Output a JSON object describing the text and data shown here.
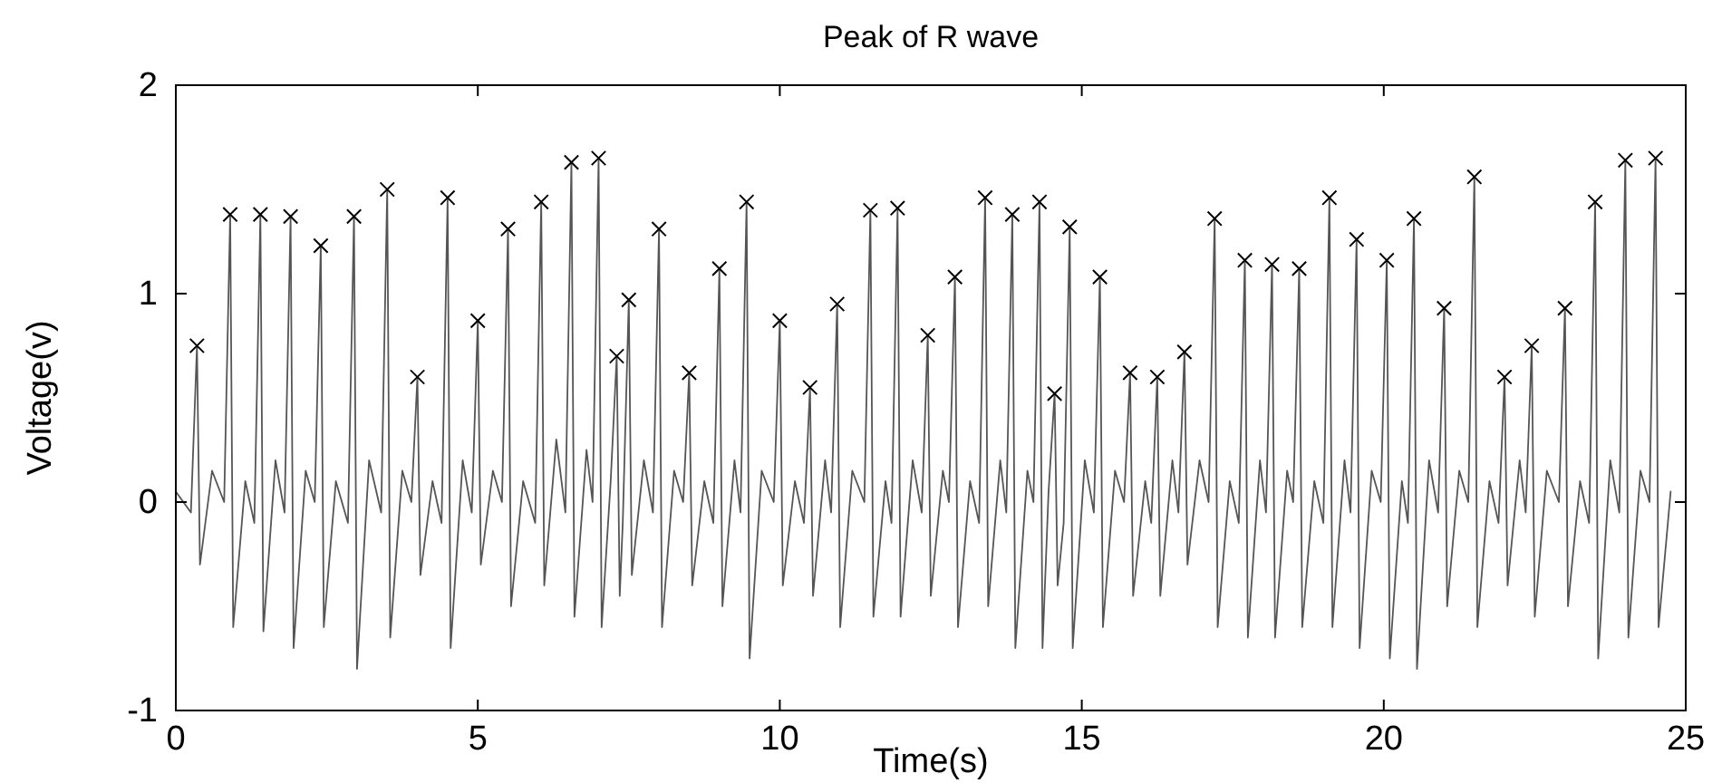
{
  "chart_data": {
    "type": "line",
    "title": "Peak of R wave",
    "xlabel": "Time(s)",
    "ylabel": "Voltage(v)",
    "xlim": [
      0,
      25
    ],
    "xticks": [
      0,
      5,
      10,
      15,
      20,
      25
    ],
    "ylim": [
      -1,
      2
    ],
    "yticks": [
      -1,
      0,
      1,
      2
    ],
    "grid": false,
    "series": [
      {
        "type": "line",
        "color": "#555555",
        "line_style": "solid",
        "x": [
          0,
          0.25,
          0.35,
          0.4,
          0.6,
          0.8,
          0.9,
          0.95,
          1.15,
          1.3,
          1.4,
          1.45,
          1.65,
          1.8,
          1.9,
          1.95,
          2.15,
          2.3,
          2.4,
          2.45,
          2.65,
          2.85,
          2.95,
          3.0,
          3.2,
          3.4,
          3.5,
          3.55,
          3.75,
          3.9,
          4.0,
          4.05,
          4.25,
          4.4,
          4.5,
          4.55,
          4.75,
          4.9,
          5.0,
          5.05,
          5.25,
          5.4,
          5.5,
          5.55,
          5.75,
          5.95,
          6.05,
          6.1,
          6.3,
          6.45,
          6.55,
          6.6,
          6.8,
          6.9,
          7.0,
          7.05,
          7.2,
          7.3,
          7.35,
          7.4,
          7.5,
          7.55,
          7.75,
          7.9,
          8.0,
          8.05,
          8.25,
          8.4,
          8.5,
          8.55,
          8.75,
          8.9,
          9.0,
          9.05,
          9.25,
          9.35,
          9.45,
          9.5,
          9.7,
          9.9,
          10.0,
          10.05,
          10.25,
          10.4,
          10.5,
          10.55,
          10.75,
          10.85,
          10.95,
          11.0,
          11.2,
          11.4,
          11.5,
          11.55,
          11.75,
          11.85,
          11.95,
          12.0,
          12.2,
          12.35,
          12.45,
          12.5,
          12.7,
          12.8,
          12.9,
          12.95,
          13.15,
          13.3,
          13.4,
          13.45,
          13.65,
          13.75,
          13.85,
          13.9,
          14.1,
          14.2,
          14.3,
          14.35,
          14.45,
          14.55,
          14.6,
          14.7,
          14.8,
          14.85,
          15.05,
          15.2,
          15.3,
          15.35,
          15.55,
          15.7,
          15.8,
          15.85,
          16.05,
          16.15,
          16.25,
          16.3,
          16.5,
          16.6,
          16.7,
          16.75,
          16.95,
          17.1,
          17.2,
          17.25,
          17.45,
          17.6,
          17.7,
          17.75,
          17.95,
          18.05,
          18.15,
          18.2,
          18.4,
          18.5,
          18.6,
          18.65,
          18.85,
          19.0,
          19.1,
          19.15,
          19.35,
          19.45,
          19.55,
          19.6,
          19.8,
          19.95,
          20.05,
          20.1,
          20.3,
          20.4,
          20.5,
          20.55,
          20.75,
          20.9,
          21.0,
          21.05,
          21.25,
          21.4,
          21.5,
          21.55,
          21.75,
          21.9,
          22.0,
          22.05,
          22.25,
          22.35,
          22.45,
          22.5,
          22.7,
          22.9,
          23.0,
          23.05,
          23.25,
          23.4,
          23.5,
          23.55,
          23.75,
          23.9,
          24.0,
          24.05,
          24.25,
          24.4,
          24.5,
          24.55,
          24.75
        ],
        "values": [
          0.05,
          -0.05,
          0.75,
          -0.3,
          0.15,
          0,
          1.38,
          -0.6,
          0.1,
          -0.1,
          1.38,
          -0.62,
          0.2,
          -0.05,
          1.37,
          -0.7,
          0.15,
          0,
          1.23,
          -0.6,
          0.1,
          -0.1,
          1.37,
          -0.8,
          0.2,
          -0.05,
          1.5,
          -0.65,
          0.15,
          0,
          0.6,
          -0.35,
          0.1,
          -0.1,
          1.46,
          -0.7,
          0.2,
          -0.05,
          0.87,
          -0.3,
          0.15,
          0,
          1.31,
          -0.5,
          0.1,
          -0.1,
          1.44,
          -0.4,
          0.3,
          -0.05,
          1.63,
          -0.55,
          0.25,
          0,
          1.65,
          -0.6,
          0.1,
          0.7,
          -0.45,
          -0.1,
          0.97,
          -0.35,
          0.2,
          -0.05,
          1.31,
          -0.6,
          0.15,
          0,
          0.62,
          -0.4,
          0.1,
          -0.1,
          1.12,
          -0.5,
          0.2,
          -0.05,
          1.44,
          -0.75,
          0.15,
          0,
          0.87,
          -0.4,
          0.1,
          -0.1,
          0.55,
          -0.45,
          0.2,
          -0.05,
          0.95,
          -0.6,
          0.15,
          0,
          1.4,
          -0.55,
          0.1,
          -0.1,
          1.41,
          -0.55,
          0.2,
          -0.05,
          0.8,
          -0.45,
          0.15,
          0,
          1.08,
          -0.6,
          0.1,
          -0.1,
          1.46,
          -0.5,
          0.2,
          -0.05,
          1.38,
          -0.7,
          0.15,
          0,
          1.44,
          -0.7,
          0.05,
          0.52,
          -0.4,
          -0.1,
          1.32,
          -0.7,
          0.2,
          -0.05,
          1.08,
          -0.6,
          0.15,
          0,
          0.62,
          -0.45,
          0.1,
          -0.1,
          0.6,
          -0.45,
          0.2,
          -0.05,
          0.72,
          -0.3,
          0.2,
          0,
          1.36,
          -0.6,
          0.1,
          -0.1,
          1.16,
          -0.65,
          0.2,
          -0.05,
          1.14,
          -0.65,
          0.15,
          0,
          1.12,
          -0.6,
          0.1,
          -0.1,
          1.46,
          -0.6,
          0.2,
          -0.05,
          1.26,
          -0.7,
          0.15,
          0,
          1.16,
          -0.75,
          0.1,
          -0.1,
          1.36,
          -0.8,
          0.2,
          -0.05,
          0.93,
          -0.5,
          0.15,
          0,
          1.56,
          -0.6,
          0.1,
          -0.1,
          0.6,
          -0.4,
          0.2,
          -0.05,
          0.75,
          -0.55,
          0.15,
          0,
          0.93,
          -0.5,
          0.1,
          -0.1,
          1.44,
          -0.75,
          0.2,
          -0.05,
          1.64,
          -0.65,
          0.15,
          0,
          1.65,
          -0.6,
          0.05
        ]
      },
      {
        "type": "scatter",
        "color": "#000000",
        "marker": "cross",
        "x": [
          0.35,
          0.9,
          1.4,
          1.9,
          2.4,
          2.95,
          3.5,
          4.0,
          4.5,
          5.0,
          5.5,
          6.05,
          6.55,
          7.0,
          7.3,
          7.5,
          8.0,
          8.5,
          9.0,
          9.45,
          10.0,
          10.5,
          10.95,
          11.5,
          11.95,
          12.45,
          12.9,
          13.4,
          13.85,
          14.3,
          14.55,
          14.8,
          15.3,
          15.8,
          16.25,
          16.7,
          17.2,
          17.7,
          18.15,
          18.6,
          19.1,
          19.55,
          20.05,
          20.5,
          21.0,
          21.5,
          22.0,
          22.45,
          23.0,
          23.5,
          24.0,
          24.5
        ],
        "values": [
          0.75,
          1.38,
          1.38,
          1.37,
          1.23,
          1.37,
          1.5,
          0.6,
          1.46,
          0.87,
          1.31,
          1.44,
          1.63,
          1.65,
          0.7,
          0.97,
          1.31,
          0.62,
          1.12,
          1.44,
          0.87,
          0.55,
          0.95,
          1.4,
          1.41,
          0.8,
          1.08,
          1.46,
          1.38,
          1.44,
          0.52,
          1.32,
          1.08,
          0.62,
          0.6,
          0.72,
          1.36,
          1.16,
          1.14,
          1.12,
          1.46,
          1.26,
          1.16,
          1.36,
          0.93,
          1.56,
          0.6,
          0.75,
          0.93,
          1.44,
          1.64,
          1.65
        ]
      }
    ]
  }
}
